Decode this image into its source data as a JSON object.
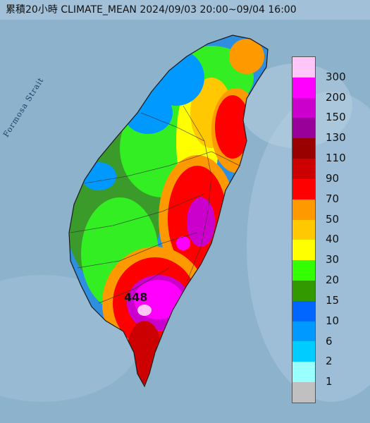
{
  "title": "累積20小時 CLIMATE_MEAN 2024/09/03 20:00~09/04 16:00",
  "sea_label": "Formosa Strait",
  "max_label": "448",
  "legend": [
    {
      "label": "300",
      "color": "#ffc6f7"
    },
    {
      "label": "200",
      "color": "#ff00ff"
    },
    {
      "label": "150",
      "color": "#cc00cc"
    },
    {
      "label": "130",
      "color": "#990099"
    },
    {
      "label": "110",
      "color": "#990000"
    },
    {
      "label": "90",
      "color": "#cc0000"
    },
    {
      "label": "70",
      "color": "#ff0000"
    },
    {
      "label": "50",
      "color": "#ff9900"
    },
    {
      "label": "40",
      "color": "#ffc800"
    },
    {
      "label": "30",
      "color": "#ffff00"
    },
    {
      "label": "20",
      "color": "#33ff00"
    },
    {
      "label": "15",
      "color": "#339900"
    },
    {
      "label": "10",
      "color": "#0066ff"
    },
    {
      "label": "6",
      "color": "#0099ff"
    },
    {
      "label": "2",
      "color": "#00ccff"
    },
    {
      "label": "1",
      "color": "#99ffff"
    },
    {
      "label": "",
      "color": "#c0c0c0"
    }
  ]
}
